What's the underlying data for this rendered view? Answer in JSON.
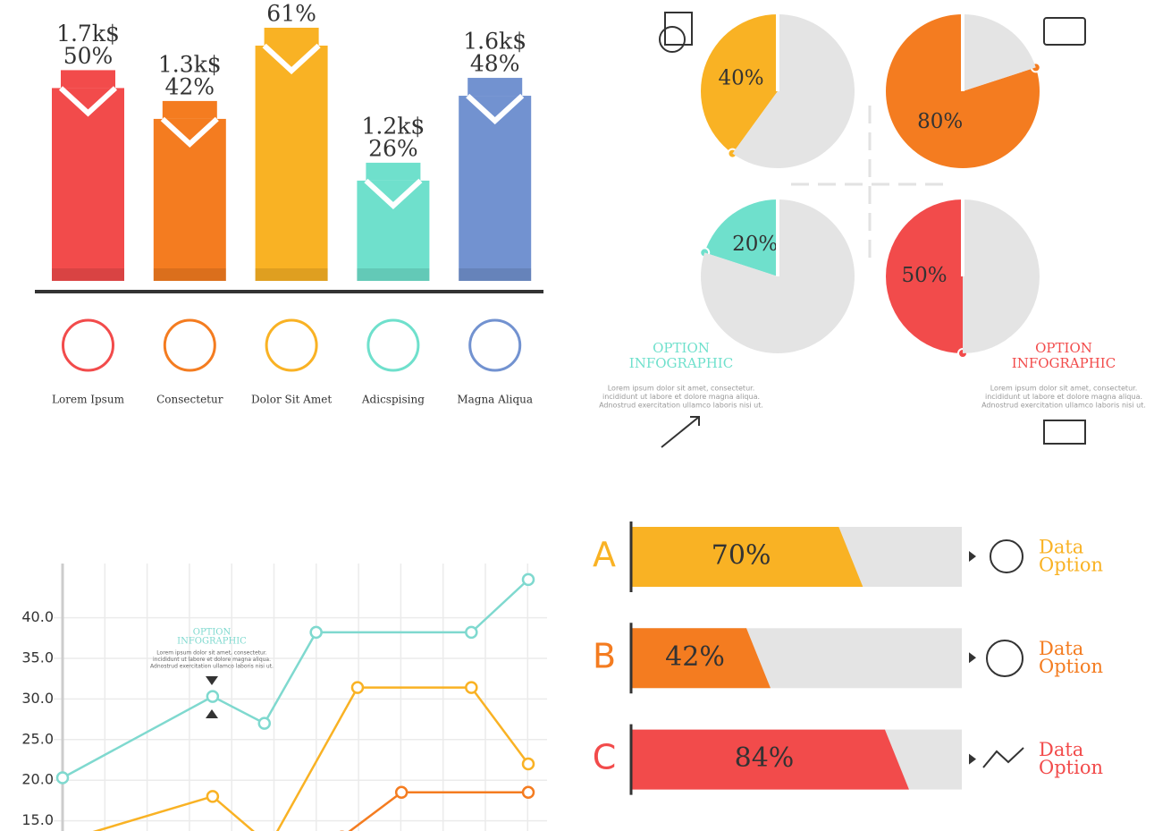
{
  "chart_data": [
    {
      "type": "bar",
      "categories": [
        "Lorem Ipsum",
        "Consectetur",
        "Dolor Sit Amet",
        "Adicspising",
        "Magna Aliqua"
      ],
      "values": [
        50,
        42,
        61,
        26,
        48
      ],
      "value_labels": [
        "50%",
        "42%",
        "61%",
        "26%",
        "48%"
      ],
      "amount_labels": [
        "1.7k$",
        "1.3k$",
        null,
        "1.2k$",
        "1.6k$"
      ],
      "colors": [
        "#f24b4b",
        "#f47c20",
        "#f9b224",
        "#6fe0cc",
        "#7292d0"
      ]
    },
    {
      "type": "pie",
      "values": [
        40,
        60
      ],
      "value_labels": [
        "40%",
        null
      ],
      "colors": [
        "#f9b224",
        "#e4e4e4"
      ]
    },
    {
      "type": "pie",
      "values": [
        80,
        20
      ],
      "value_labels": [
        "80%",
        null
      ],
      "colors": [
        "#f47c20",
        "#e4e4e4"
      ]
    },
    {
      "type": "pie",
      "values": [
        20,
        80
      ],
      "value_labels": [
        "20%",
        null
      ],
      "colors": [
        "#6fe0cc",
        "#e4e4e4"
      ],
      "annotation": [
        "OPTION",
        "INFOGRAPHIC"
      ],
      "notes": [
        "Lorem ipsum dolor sit amet, consectetur.",
        "incididunt ut labore et dolore magna aliqua.",
        "Adnostrud exercitation ullamco laboris nisi ut."
      ]
    },
    {
      "type": "pie",
      "values": [
        50,
        50
      ],
      "value_labels": [
        "50%",
        null
      ],
      "colors": [
        "#f24b4b",
        "#e4e4e4"
      ],
      "annotation": [
        "OPTION",
        "INFOGRAPHIC"
      ],
      "notes": [
        "Lorem ipsum dolor sit amet, consectetur.",
        "incididunt ut labore et dolore magna aliqua.",
        "Adnostrud exercitation ullamco laboris nisi ut."
      ]
    },
    {
      "type": "line",
      "xlim": [
        0,
        9
      ],
      "ylim": [
        10,
        47
      ],
      "grid": true,
      "yticks": [
        {
          "value": 15,
          "label": "15.0"
        },
        {
          "value": 20,
          "label": "20.0"
        },
        {
          "value": 25,
          "label": "25.0"
        },
        {
          "value": 30,
          "label": "30.0"
        },
        {
          "value": 35,
          "label": "35.0"
        },
        {
          "value": 40,
          "label": "40.0"
        }
      ],
      "series": [
        {
          "color": "#7fd9cf",
          "x": [
            0,
            2.9,
            3.9,
            4.9,
            7.9,
            9
          ],
          "values": [
            20.3,
            30.3,
            27.0,
            38.2,
            38.2,
            44.7
          ]
        },
        {
          "color": "#f9b224",
          "x": [
            0,
            2.9,
            4.0,
            5.7,
            7.9,
            9
          ],
          "values": [
            12.5,
            18.0,
            12.0,
            31.4,
            31.4,
            22.0
          ]
        },
        {
          "color": "#f47c20",
          "x": [
            5.4,
            6.55,
            9
          ],
          "values": [
            13.0,
            18.5,
            18.5
          ]
        }
      ],
      "annotation": [
        "OPTION",
        "INFOGRAPHIC"
      ],
      "notes": [
        "Lorem ipsum dolor sit amet, consectetur.",
        "incididunt ut labore et dolore magna aliqua.",
        "Adnostrud exercitation ullamco laboris nisi ut."
      ]
    },
    {
      "type": "hbar",
      "categories": [
        "A",
        "B",
        "C"
      ],
      "values": [
        70,
        42,
        84
      ],
      "value_labels": [
        "70%",
        "42%",
        "84%"
      ],
      "xlim": [
        0,
        100
      ],
      "colors": [
        "#f9b224",
        "#f47c20",
        "#f24b4b"
      ],
      "side_labels": [
        [
          "Data",
          "Option"
        ],
        [
          "Data",
          "Option"
        ],
        [
          "Data",
          "Option"
        ]
      ]
    }
  ]
}
